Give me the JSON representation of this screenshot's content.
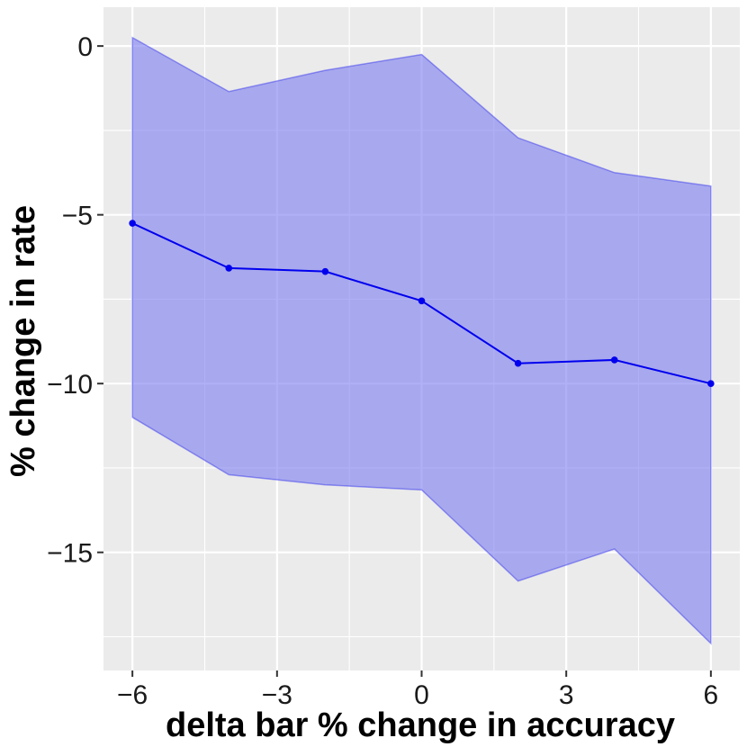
{
  "chart_data": {
    "type": "line",
    "title": "",
    "xlabel": "delta bar % change in accuracy",
    "ylabel": "% change in rate",
    "xlim": [
      -6.6,
      6.6
    ],
    "ylim": [
      -18.5,
      1.15
    ],
    "x_ticks": [
      -6,
      -3,
      0,
      3,
      6
    ],
    "x_tick_labels": [
      "−6",
      "−3",
      "0",
      "3",
      "6"
    ],
    "y_ticks": [
      0,
      -5,
      -10,
      -15
    ],
    "y_tick_labels": [
      "0",
      "−5",
      "−10",
      "−15"
    ],
    "x_minor_ticks": [
      -4.5,
      -1.5,
      1.5,
      4.5
    ],
    "y_minor_ticks": [
      -2.5,
      -7.5,
      -12.5,
      -17.5
    ],
    "grid": true,
    "series": [
      {
        "x": [
          -6,
          -4,
          -2,
          0,
          2,
          4,
          6
        ],
        "y": [
          -5.25,
          -6.58,
          -6.68,
          -7.55,
          -9.4,
          -9.3,
          -10.0
        ],
        "lower": [
          -11.0,
          -12.7,
          -13.0,
          -13.15,
          -15.85,
          -14.9,
          -17.7
        ],
        "upper": [
          0.25,
          -1.35,
          -0.72,
          -0.25,
          -2.72,
          -3.75,
          -4.15
        ]
      }
    ],
    "colors": {
      "line": "#0000ee",
      "ribbon": "#7b7bf0",
      "panel": "#ebebeb",
      "grid": "#ffffff"
    }
  }
}
